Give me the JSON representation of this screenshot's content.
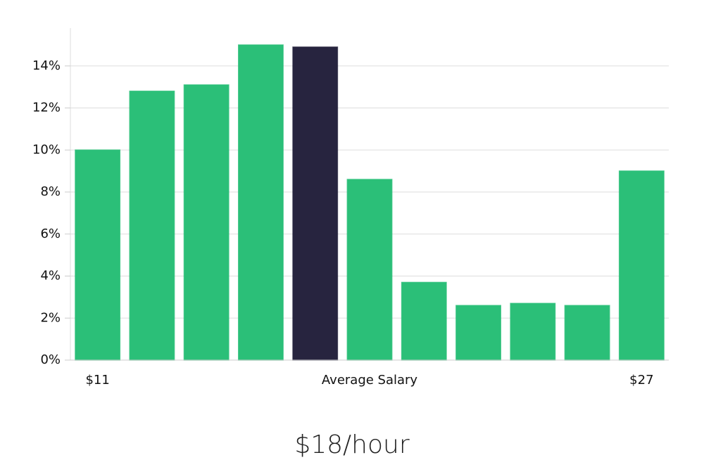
{
  "chart_data": {
    "type": "bar",
    "categories": [
      "$11",
      null,
      null,
      null,
      null,
      "Average Salary",
      null,
      null,
      null,
      null,
      "$27"
    ],
    "values": [
      10.0,
      12.8,
      13.1,
      15.0,
      14.9,
      8.6,
      3.7,
      2.6,
      2.7,
      2.6,
      9.0
    ],
    "colors": [
      "#2bbf78",
      "#2bbf78",
      "#2bbf78",
      "#2bbf78",
      "#27243f",
      "#2bbf78",
      "#2bbf78",
      "#2bbf78",
      "#2bbf78",
      "#2bbf78",
      "#2bbf78"
    ],
    "ylim": [
      0,
      15.8
    ],
    "yticks": [
      {
        "value": 0,
        "label": "0%"
      },
      {
        "value": 2,
        "label": "2%"
      },
      {
        "value": 4,
        "label": "4%"
      },
      {
        "value": 6,
        "label": "6%"
      },
      {
        "value": 8,
        "label": "8%"
      },
      {
        "value": 10,
        "label": "10%"
      },
      {
        "value": 12,
        "label": "12%"
      },
      {
        "value": 14,
        "label": "14%"
      }
    ],
    "grid": true,
    "caption": "$18/hour"
  }
}
